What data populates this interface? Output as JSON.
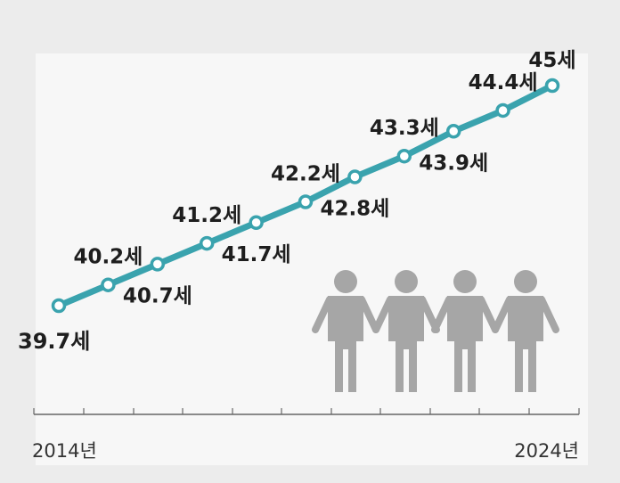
{
  "chart_data": {
    "type": "line",
    "x": [
      2014,
      2015,
      2016,
      2017,
      2018,
      2019,
      2020,
      2021,
      2022,
      2023,
      2024
    ],
    "values": [
      39.7,
      40.2,
      40.7,
      41.2,
      41.7,
      42.2,
      42.8,
      43.3,
      43.9,
      44.4,
      45
    ],
    "point_labels": [
      "39.7세",
      "40.2세",
      "40.7세",
      "41.2세",
      "41.7세",
      "42.2세",
      "42.8세",
      "43.3세",
      "43.9세",
      "44.4세",
      "45세"
    ],
    "x_tick_labels": [
      "2014년",
      "2024년"
    ],
    "grid": false,
    "colors": {
      "line": "#3aa3ae",
      "marker_fill": "#ffffff",
      "figures": "#a6a6a6",
      "axis": "#666666"
    },
    "decoration": "people-silhouette-icons"
  }
}
